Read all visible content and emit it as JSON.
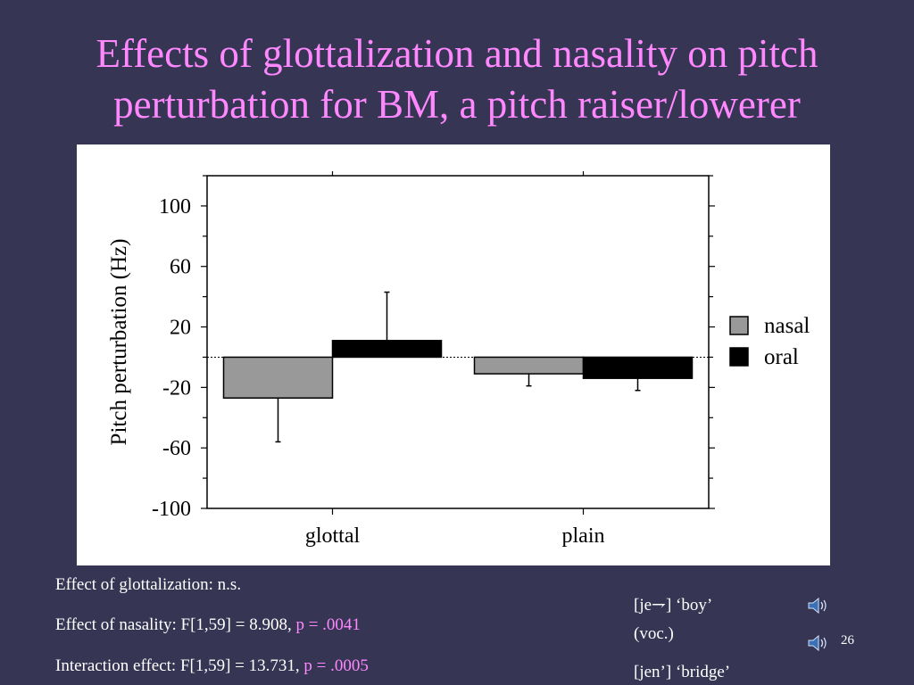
{
  "slide": {
    "title_line1": "Effects of glottalization and nasality on pitch",
    "title_line2": "perturbation for BM, a pitch raiser/lowerer",
    "page_number": "26"
  },
  "chart_data": {
    "type": "bar",
    "categories": [
      "glottal",
      "plain"
    ],
    "series": [
      {
        "name": "nasal",
        "values": [
          -27,
          -11
        ],
        "error": [
          29,
          8
        ],
        "color": "#999999"
      },
      {
        "name": "oral",
        "values": [
          11,
          -14
        ],
        "error": [
          32,
          8
        ],
        "color": "#000000"
      }
    ],
    "ylabel": "Pitch perturbation (Hz)",
    "xlabel": "",
    "ylim": [
      -100,
      120
    ],
    "yticks": [
      100,
      60,
      20,
      -20,
      -60,
      -100
    ],
    "ytick_labels": [
      "100",
      "60",
      "20",
      "-20",
      "-60",
      "-100"
    ],
    "zero_line": "dotted",
    "legend_position": "right",
    "grid": false
  },
  "stats": {
    "glottalization": "Effect of glottalization:  n.s.",
    "nasality_text": "Effect of nasality: F[1,59] = 8.908, ",
    "nasality_p": "p = .0041",
    "interaction_text": "Interaction effect: F[1,59] = 13.731, ",
    "interaction_p": "p = .0005"
  },
  "examples": {
    "item1_line1": "[je⇁] ‘boy’",
    "item1_line2": "(voc.)",
    "item2": "[jen’] ‘bridge’",
    "icons": [
      "speaker-icon",
      "speaker-icon"
    ]
  }
}
